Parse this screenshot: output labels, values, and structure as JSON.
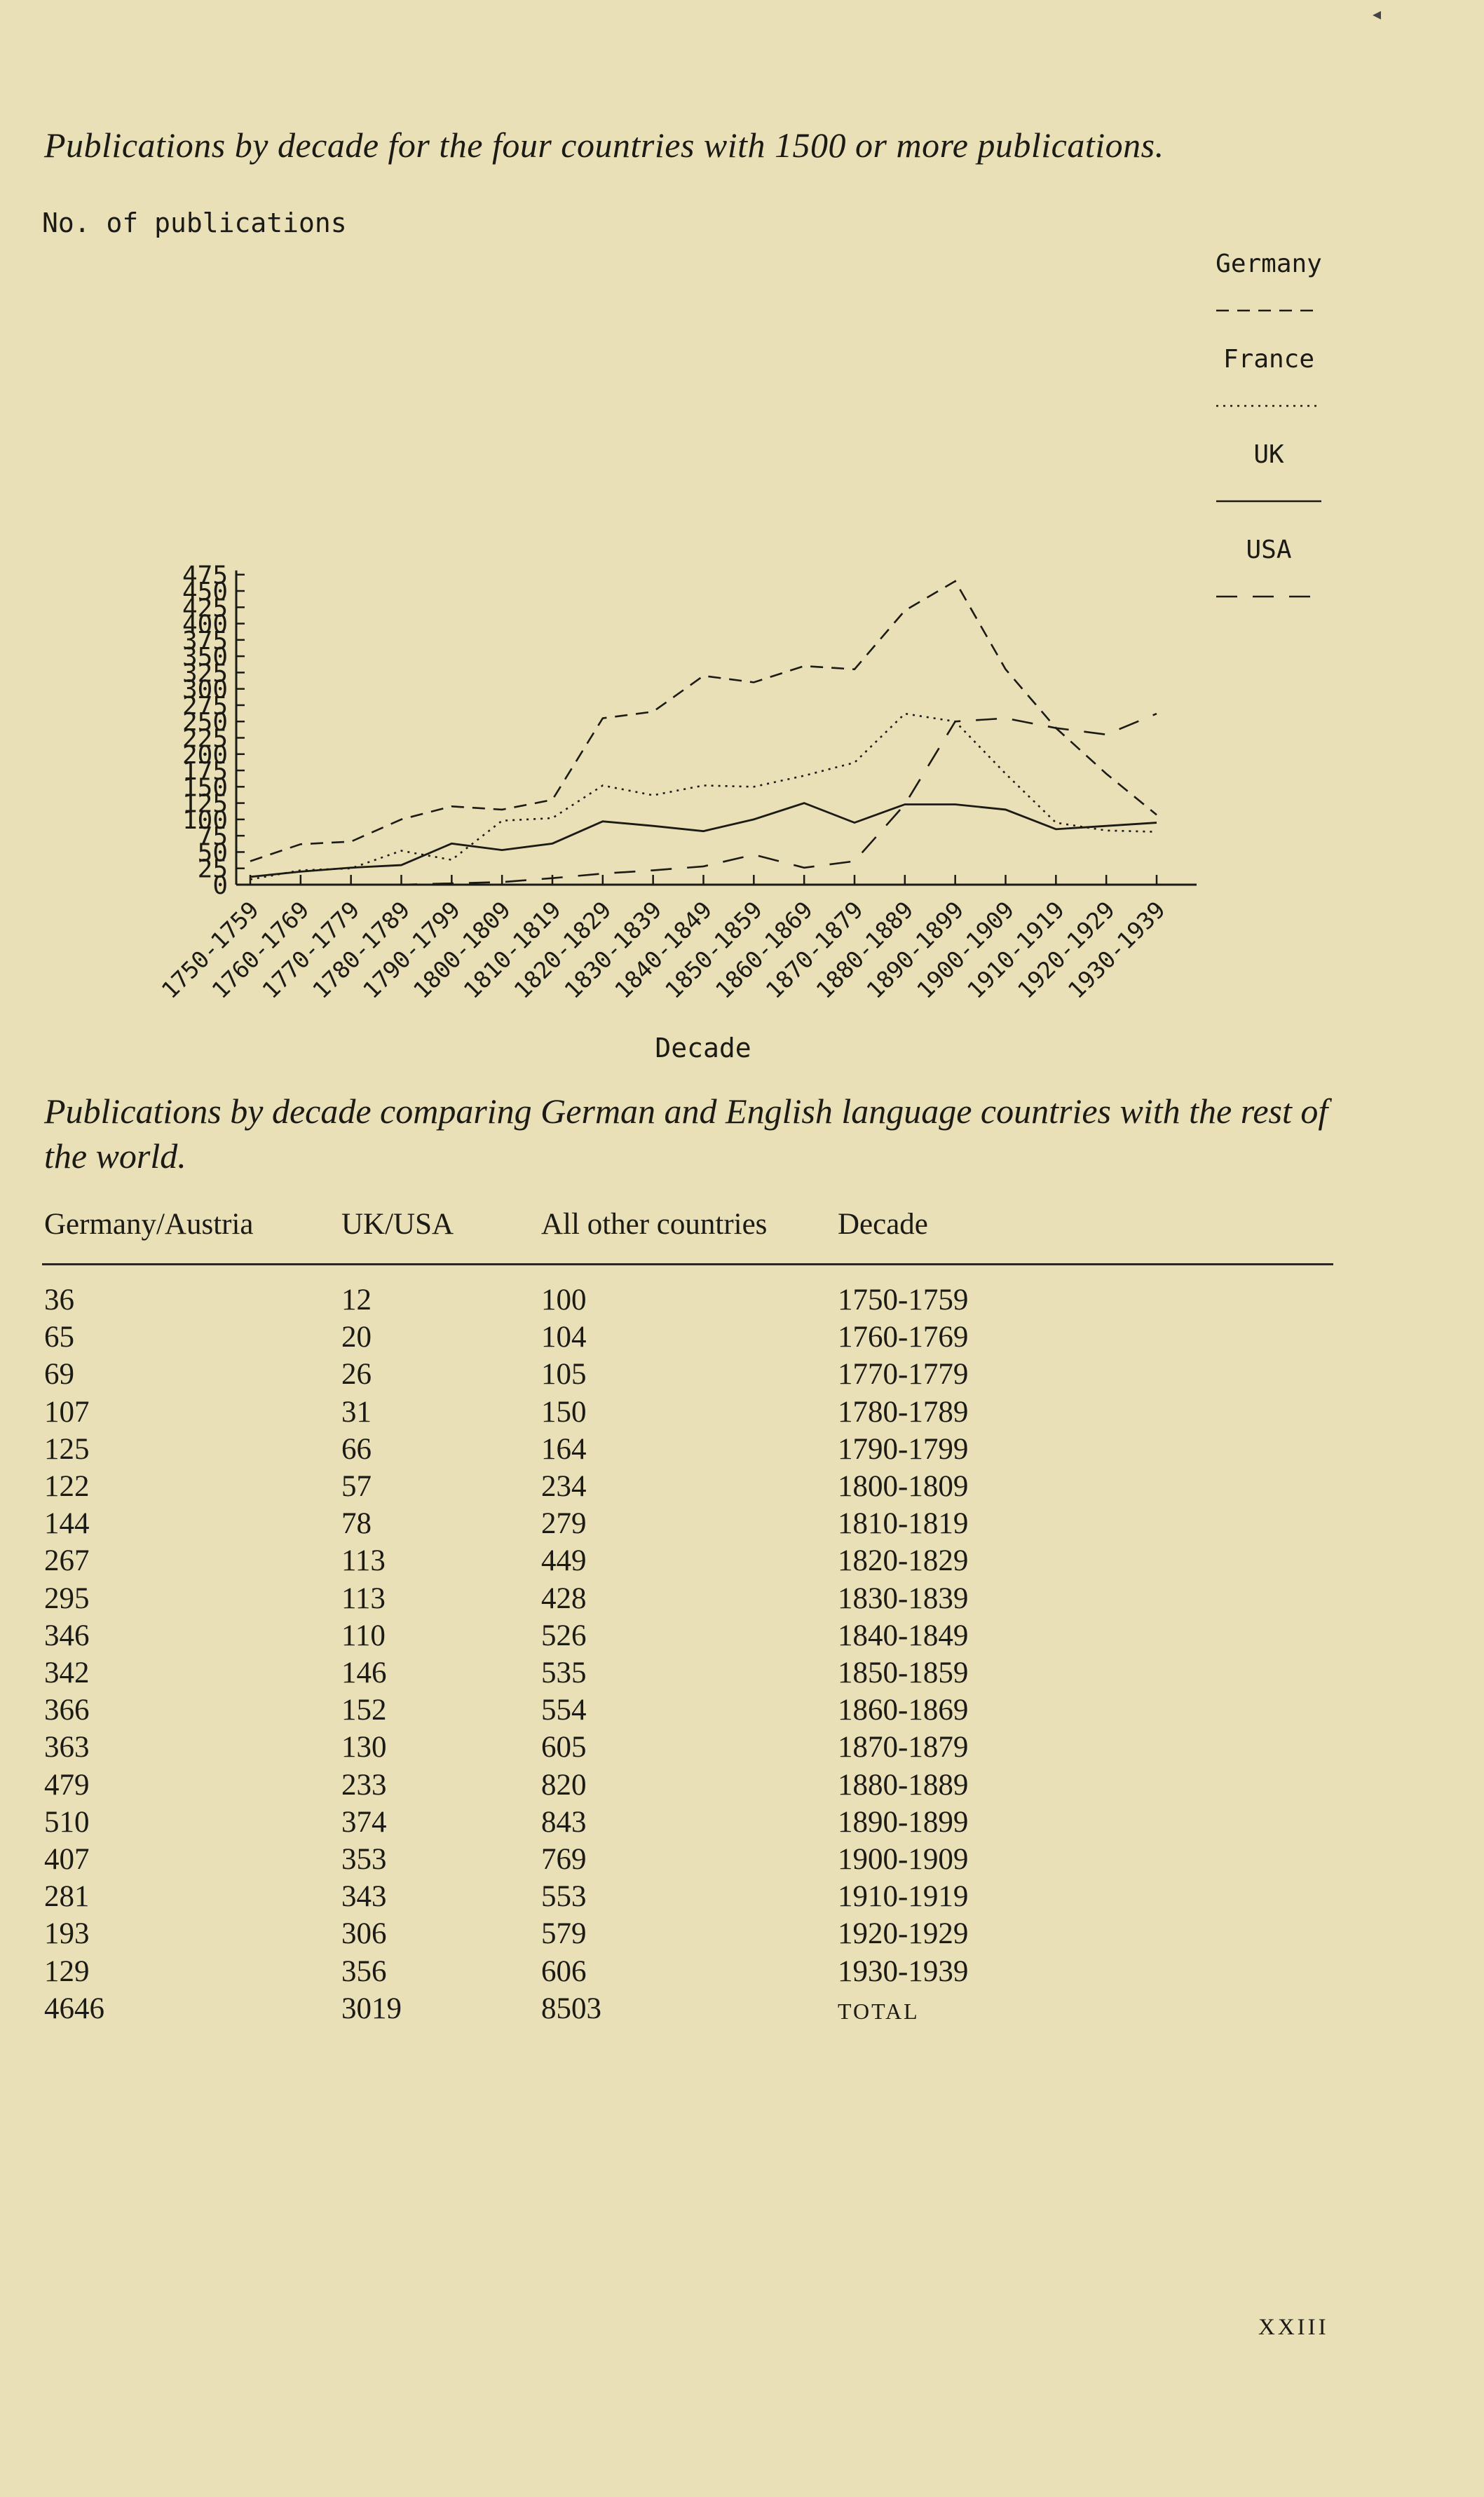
{
  "page": {
    "folio": "XXIII",
    "corner_mark": "◂"
  },
  "figure": {
    "caption": "Publications by decade for the four countries with 1500 or more publications."
  },
  "chart_data": {
    "type": "line",
    "title": "",
    "ylabel": "No. of publications",
    "xlabel": "Decade",
    "ylim": [
      0,
      475
    ],
    "yticks": [
      "0",
      "25",
      "50",
      "75",
      "100",
      "125",
      "150",
      "175",
      "200",
      "225",
      "250",
      "275",
      "300",
      "325",
      "350",
      "375",
      "400",
      "425",
      "450",
      "475"
    ],
    "categories": [
      "1750-1759",
      "1760-1769",
      "1770-1779",
      "1780-1789",
      "1790-1799",
      "1800-1809",
      "1810-1819",
      "1820-1829",
      "1830-1839",
      "1840-1849",
      "1850-1859",
      "1860-1869",
      "1870-1879",
      "1880-1889",
      "1890-1899",
      "1900-1909",
      "1910-1919",
      "1920-1929",
      "1930-1939"
    ],
    "legend_position": "right",
    "series": [
      {
        "name": "Germany",
        "style": "dashed",
        "values": [
          36,
          62,
          66,
          100,
          120,
          115,
          130,
          255,
          265,
          320,
          310,
          335,
          330,
          420,
          465,
          330,
          240,
          170,
          107
        ]
      },
      {
        "name": "France",
        "style": "dotted",
        "values": [
          8,
          22,
          25,
          52,
          38,
          98,
          102,
          152,
          137,
          152,
          150,
          167,
          187,
          262,
          250,
          170,
          95,
          83,
          81
        ]
      },
      {
        "name": "UK",
        "style": "solid",
        "values": [
          12,
          20,
          26,
          30,
          63,
          53,
          63,
          97,
          90,
          82,
          100,
          125,
          95,
          123,
          123,
          115,
          85,
          90,
          95
        ]
      },
      {
        "name": "USA",
        "style": "long-dashed",
        "values": [
          0,
          0,
          0,
          0,
          2,
          4,
          10,
          17,
          22,
          28,
          46,
          26,
          36,
          123,
          250,
          255,
          240,
          230,
          262
        ]
      }
    ]
  },
  "table": {
    "title": "Publications by decade comparing German and English language countries with the rest of the world.",
    "headers": [
      "Germany/Austria",
      "UK/USA",
      "All other countries",
      "Decade"
    ],
    "rows": [
      [
        "36",
        "12",
        "100",
        "1750-1759"
      ],
      [
        "65",
        "20",
        "104",
        "1760-1769"
      ],
      [
        "69",
        "26",
        "105",
        "1770-1779"
      ],
      [
        "107",
        "31",
        "150",
        "1780-1789"
      ],
      [
        "125",
        "66",
        "164",
        "1790-1799"
      ],
      [
        "122",
        "57",
        "234",
        "1800-1809"
      ],
      [
        "144",
        "78",
        "279",
        "1810-1819"
      ],
      [
        "267",
        "113",
        "449",
        "1820-1829"
      ],
      [
        "295",
        "113",
        "428",
        "1830-1839"
      ],
      [
        "346",
        "110",
        "526",
        "1840-1849"
      ],
      [
        "342",
        "146",
        "535",
        "1850-1859"
      ],
      [
        "366",
        "152",
        "554",
        "1860-1869"
      ],
      [
        "363",
        "130",
        "605",
        "1870-1879"
      ],
      [
        "479",
        "233",
        "820",
        "1880-1889"
      ],
      [
        "510",
        "374",
        "843",
        "1890-1899"
      ],
      [
        "407",
        "353",
        "769",
        "1900-1909"
      ],
      [
        "281",
        "343",
        "553",
        "1910-1919"
      ],
      [
        "193",
        "306",
        "579",
        "1920-1929"
      ],
      [
        "129",
        "356",
        "606",
        "1930-1939"
      ],
      [
        "4646",
        "3019",
        "8503",
        "TOTAL"
      ]
    ]
  }
}
